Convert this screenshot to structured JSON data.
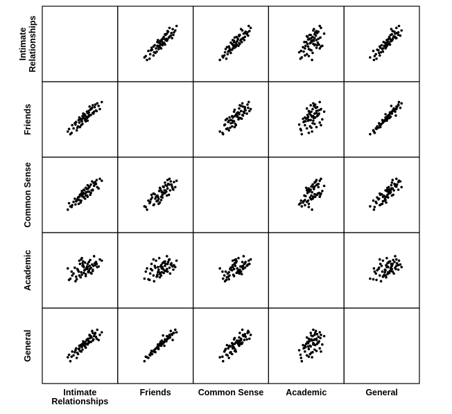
{
  "chart_data": {
    "type": "scatter-matrix",
    "title": "",
    "variables": [
      "Intimate Relationships",
      "Friends",
      "Common Sense",
      "Academic",
      "General"
    ],
    "row_labels": [
      [
        "Intimate",
        "Relationships"
      ],
      [
        "Friends"
      ],
      [
        "Common Sense"
      ],
      [
        "Academic"
      ],
      [
        "General"
      ]
    ],
    "col_labels": [
      [
        "Intimate",
        "Relationships"
      ],
      [
        "Friends"
      ],
      [
        "Common Sense"
      ],
      [
        "Academic"
      ],
      [
        "General"
      ]
    ],
    "diagonal": "empty",
    "range": [
      0,
      10
    ],
    "grid": false,
    "point_color": "#000000",
    "observations": [
      [
        5.2,
        5.6,
        5.0,
        6.1,
        5.4
      ],
      [
        6.1,
        6.4,
        5.8,
        5.2,
        6.0
      ],
      [
        4.3,
        4.0,
        4.6,
        5.5,
        4.2
      ],
      [
        7.0,
        7.2,
        6.9,
        6.4,
        7.1
      ],
      [
        3.2,
        3.0,
        3.5,
        4.0,
        2.9
      ],
      [
        5.8,
        5.5,
        6.2,
        5.9,
        5.6
      ],
      [
        6.5,
        7.0,
        6.0,
        4.8,
        6.6
      ],
      [
        4.9,
        5.1,
        4.4,
        5.0,
        5.2
      ],
      [
        2.8,
        3.4,
        3.0,
        5.6,
        3.5
      ],
      [
        8.1,
        8.0,
        7.5,
        6.8,
        7.4
      ],
      [
        5.5,
        6.0,
        5.5,
        6.5,
        5.8
      ],
      [
        6.8,
        6.2,
        7.2,
        6.0,
        6.3
      ],
      [
        4.0,
        4.5,
        3.8,
        3.6,
        4.6
      ],
      [
        5.0,
        5.3,
        5.9,
        7.2,
        5.5
      ],
      [
        6.2,
        5.9,
        6.6,
        5.5,
        6.9
      ],
      [
        3.7,
        3.9,
        4.2,
        4.8,
        3.8
      ],
      [
        7.4,
        7.8,
        6.5,
        5.8,
        7.8
      ],
      [
        5.6,
        5.0,
        5.2,
        4.4,
        5.0
      ],
      [
        4.6,
        4.8,
        5.0,
        6.8,
        4.9
      ],
      [
        6.0,
        6.6,
        6.3,
        5.1,
        6.4
      ],
      [
        5.3,
        5.8,
        4.9,
        5.8,
        5.7
      ],
      [
        7.8,
        6.9,
        7.8,
        7.0,
        7.0
      ],
      [
        4.4,
        4.2,
        4.9,
        5.3,
        4.0
      ],
      [
        6.4,
        6.0,
        5.6,
        4.9,
        5.9
      ],
      [
        3.5,
        4.4,
        3.7,
        4.5,
        4.4
      ],
      [
        5.9,
        6.3,
        6.8,
        6.3,
        6.2
      ],
      [
        6.7,
        7.5,
        6.1,
        5.4,
        7.3
      ],
      [
        5.1,
        4.6,
        5.4,
        6.0,
        4.7
      ],
      [
        4.8,
        5.4,
        4.1,
        4.2,
        5.4
      ],
      [
        7.2,
        6.7,
        7.0,
        6.6,
        6.7
      ],
      [
        5.7,
        5.7,
        5.7,
        5.6,
        6.1
      ],
      [
        6.3,
        6.8,
        5.3,
        6.9,
        6.5
      ],
      [
        4.2,
        3.6,
        4.4,
        3.9,
        3.4
      ],
      [
        5.4,
        6.1,
        6.0,
        5.3,
        5.3
      ],
      [
        6.9,
        6.5,
        6.7,
        7.5,
        6.8
      ],
      [
        3.9,
        4.7,
        4.7,
        5.7,
        4.3
      ],
      [
        5.0,
        5.0,
        5.1,
        4.6,
        5.1
      ],
      [
        6.6,
        7.1,
        7.4,
        6.2,
        7.6
      ],
      [
        4.5,
        5.2,
        3.9,
        5.1,
        4.8
      ],
      [
        5.6,
        5.4,
        6.4,
        4.7,
        5.6
      ],
      [
        7.6,
        7.4,
        6.3,
        5.9,
        6.2
      ],
      [
        4.7,
        4.1,
        5.3,
        6.3,
        4.5
      ],
      [
        6.0,
        5.7,
        5.8,
        5.0,
        5.7
      ],
      [
        5.2,
        6.2,
        5.6,
        6.7,
        6.0
      ],
      [
        3.0,
        3.8,
        4.0,
        3.8,
        3.9
      ],
      [
        6.4,
        6.9,
        6.9,
        5.7,
        6.8
      ],
      [
        5.5,
        5.2,
        4.7,
        5.4,
        5.2
      ],
      [
        6.1,
        6.0,
        6.5,
        6.6,
        5.8
      ],
      [
        4.1,
        4.9,
        4.3,
        4.3,
        4.9
      ],
      [
        7.1,
        7.6,
        7.3,
        6.1,
        7.3
      ],
      [
        5.8,
        6.5,
        5.2,
        5.5,
        6.3
      ],
      [
        4.9,
        4.4,
        5.5,
        7.0,
        4.4
      ],
      [
        6.7,
        6.3,
        6.0,
        5.2,
        6.1
      ],
      [
        5.3,
        5.5,
        6.1,
        4.9,
        5.9
      ],
      [
        3.4,
        3.2,
        3.4,
        5.1,
        3.6
      ],
      [
        6.2,
        7.3,
        6.6,
        6.0,
        7.0
      ],
      [
        5.9,
        5.1,
        5.0,
        5.8,
        5.5
      ],
      [
        7.3,
        6.6,
        7.6,
        6.3,
        6.4
      ],
      [
        4.6,
        5.6,
        4.5,
        4.5,
        5.3
      ],
      [
        5.1,
        5.8,
        5.3,
        6.4,
        5.6
      ]
    ]
  }
}
